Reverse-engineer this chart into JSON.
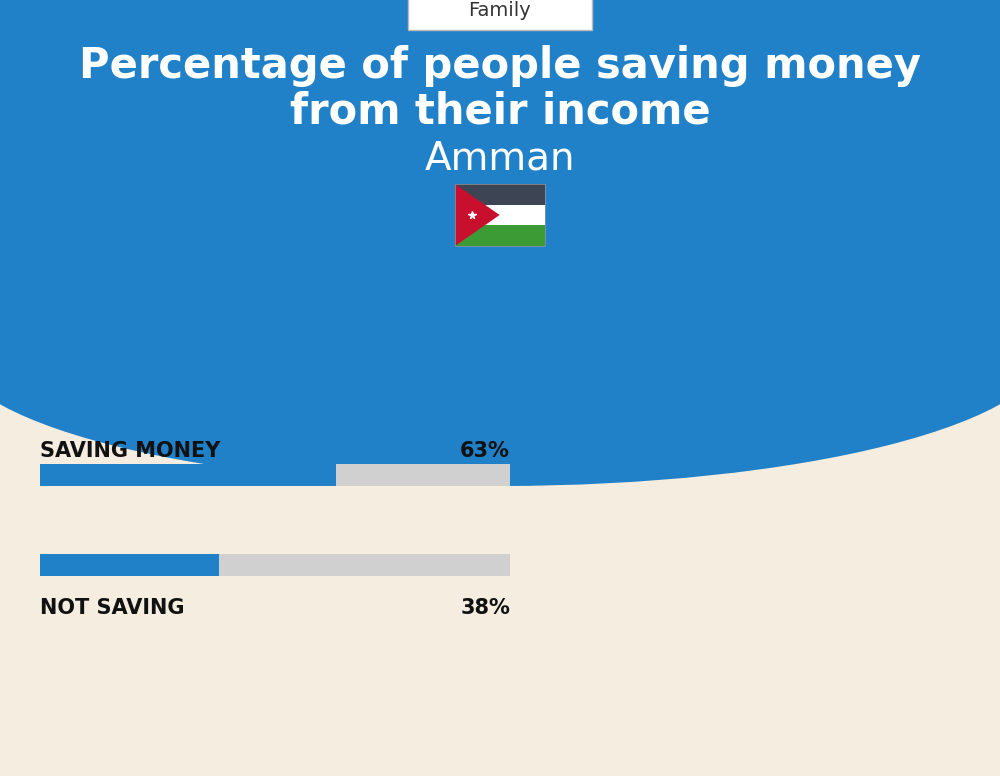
{
  "title_line1": "Percentage of people saving money",
  "title_line2": "from their income",
  "subtitle": "Amman",
  "category_label": "Family",
  "bg_top_color": "#2080C8",
  "bg_bottom_color": "#F5EDE0",
  "bar1_label": "SAVING MONEY",
  "bar1_value": 63,
  "bar1_pct": "63%",
  "bar2_label": "NOT SAVING",
  "bar2_value": 38,
  "bar2_pct": "38%",
  "bar_fill_color": "#2080C8",
  "bar_bg_color": "#D0D0D0",
  "title_color": "#FFFFFF",
  "subtitle_color": "#FFFFFF",
  "label_color": "#111111",
  "figsize": [
    10,
    7.76
  ],
  "dpi": 100
}
